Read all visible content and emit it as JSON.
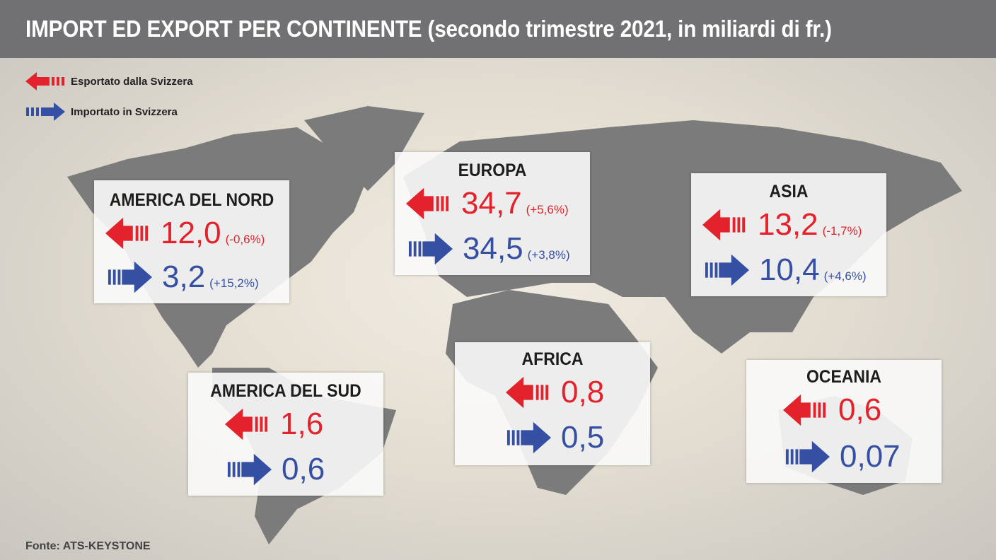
{
  "title": "IMPORT ED EXPORT PER CONTINENTE (secondo trimestre 2021, in miliardi di fr.)",
  "legend": {
    "export": "Esportato dalla Svizzera",
    "import": "Importato in Svizzera"
  },
  "colors": {
    "export": "#e3222b",
    "import": "#3550a3"
  },
  "continents": [
    {
      "name": "AMERICA DEL NORD",
      "export": "12,0",
      "export_change": "(-0,6%)",
      "import": "3,2",
      "import_change": "(+15,2%)"
    },
    {
      "name": "EUROPA",
      "export": "34,7",
      "export_change": "(+5,6%)",
      "import": "34,5",
      "import_change": "(+3,8%)"
    },
    {
      "name": "ASIA",
      "export": "13,2",
      "export_change": "(-1,7%)",
      "import": "10,4",
      "import_change": "(+4,6%)"
    },
    {
      "name": "AMERICA DEL SUD",
      "export": "1,6",
      "import": "0,6"
    },
    {
      "name": "AFRICA",
      "export": "0,8",
      "import": "0,5"
    },
    {
      "name": "OCEANIA",
      "export": "0,6",
      "import": "0,07"
    }
  ],
  "source": "Fonte: ATS-KEYSTONE"
}
